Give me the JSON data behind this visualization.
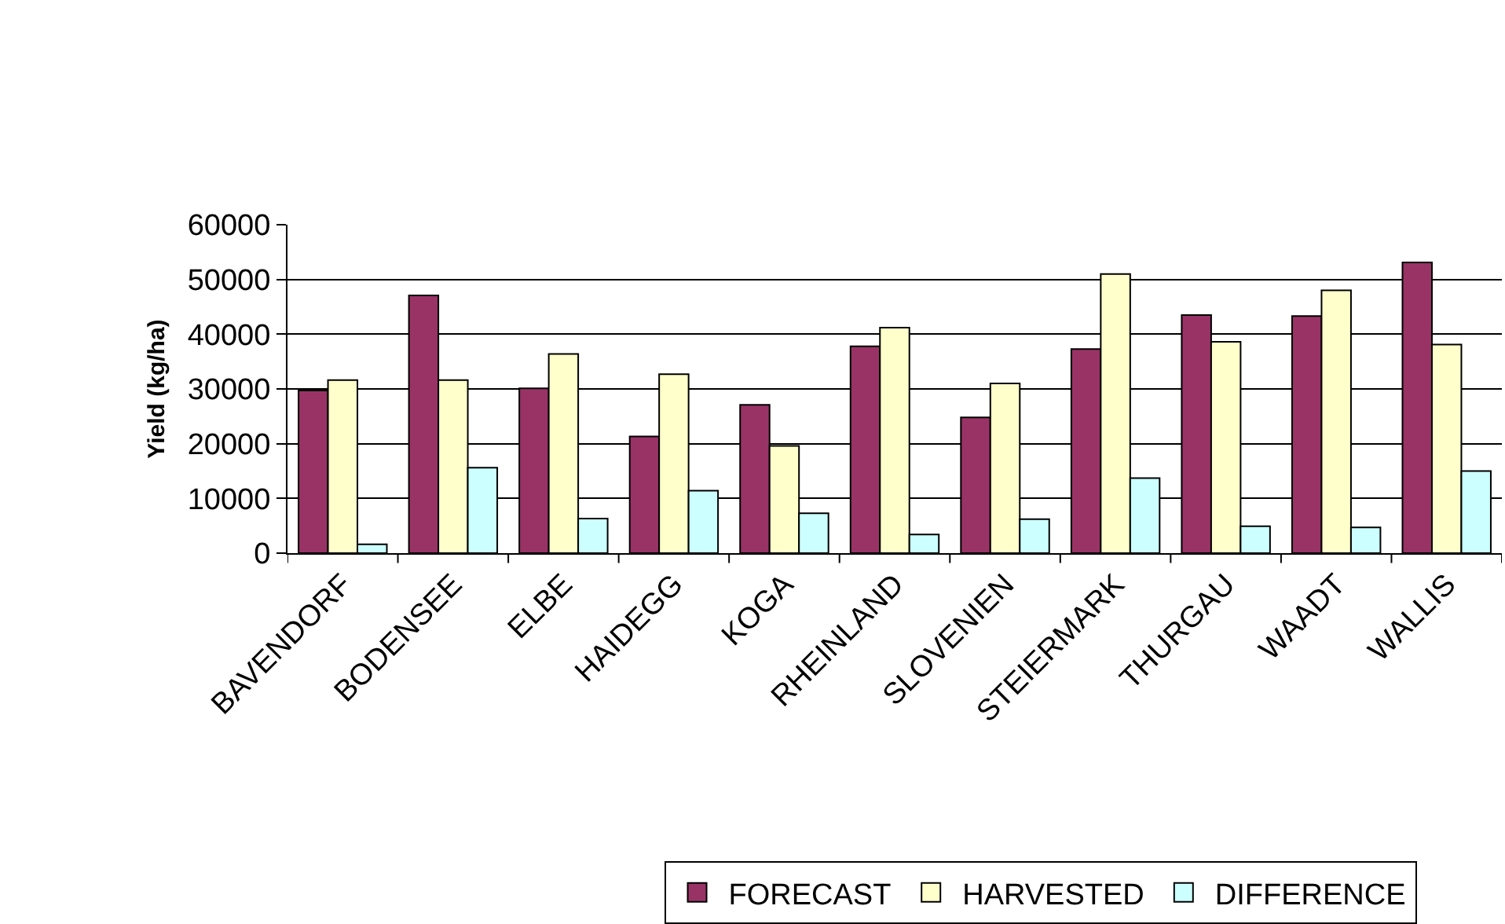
{
  "chart_data": {
    "type": "bar",
    "ylabel": "Yield (kg/ha)",
    "categories": [
      "BAVENDORF",
      "BODENSEE",
      "ELBE",
      "HAIDEGG",
      "KOGA",
      "RHEINLAND",
      "SLOVENIEN",
      "STEIERMARK",
      "THURGAU",
      "WAADT",
      "WALLIS"
    ],
    "series": [
      {
        "name": "FORECAST",
        "color": "#993366",
        "values": [
          29700,
          47100,
          30100,
          21300,
          27100,
          37800,
          24800,
          37300,
          43500,
          43300,
          53100
        ]
      },
      {
        "name": "HARVESTED",
        "color": "#ffffcc",
        "values": [
          31600,
          31600,
          36400,
          32700,
          19600,
          41200,
          31000,
          51000,
          38600,
          48000,
          38100
        ]
      },
      {
        "name": "DIFFERENCE",
        "color": "#ccffff",
        "values": [
          1600,
          15600,
          6300,
          11400,
          7300,
          3400,
          6200,
          13700,
          4900,
          4700,
          15000
        ]
      }
    ],
    "ylim": [
      0,
      60000
    ],
    "yticks": [
      0,
      10000,
      20000,
      30000,
      40000,
      50000,
      60000
    ],
    "grid": "y",
    "legend": "bottom"
  }
}
